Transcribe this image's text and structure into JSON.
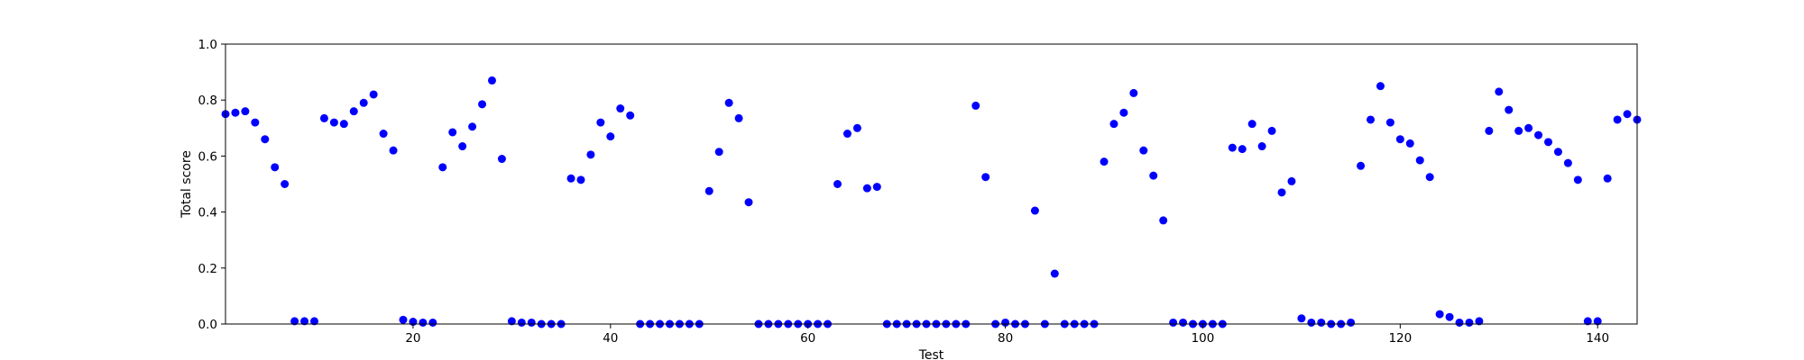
{
  "chart_data": {
    "type": "scatter",
    "xlabel": "Test",
    "ylabel": "Total score",
    "xlim": [
      1,
      144
    ],
    "ylim": [
      0,
      1.0
    ],
    "x_ticks": [
      20,
      40,
      60,
      80,
      100,
      120,
      140
    ],
    "x_tick_labels": [
      "20",
      "40",
      "60",
      "80",
      "100",
      "120",
      "140"
    ],
    "y_ticks": [
      0,
      0.2,
      0.4,
      0.6,
      0.8,
      1.0
    ],
    "y_tick_labels": [
      "0.0",
      "0.2",
      "0.4",
      "0.6",
      "0.8",
      "1.0"
    ],
    "grid": false,
    "marker_color": "#0000ff",
    "series": [
      {
        "x": [
          1,
          2,
          3,
          4,
          5,
          6,
          7,
          8,
          9,
          10,
          11,
          12,
          13,
          14,
          15,
          16,
          17,
          18,
          19,
          20,
          21,
          22,
          23,
          24,
          25,
          26,
          27,
          28,
          29,
          30,
          31,
          32,
          33,
          34,
          35,
          36,
          37,
          38,
          39,
          40,
          41,
          42,
          43,
          44,
          45,
          46,
          47,
          48,
          49,
          50,
          51,
          52,
          53,
          54,
          55,
          56,
          57,
          58,
          59,
          60,
          61,
          62,
          63,
          64,
          65,
          66,
          67,
          68,
          69,
          70,
          71,
          72,
          73,
          74,
          75,
          76,
          77,
          78,
          79,
          80,
          81,
          82,
          83,
          84,
          85,
          86,
          87,
          88,
          89,
          90,
          91,
          92,
          93,
          94,
          95,
          96,
          97,
          98,
          99,
          100,
          101,
          102,
          103,
          104,
          105,
          106,
          107,
          108,
          109,
          110,
          111,
          112,
          113,
          114,
          115,
          116,
          117,
          118,
          119,
          120,
          121,
          122,
          123,
          124,
          125,
          126,
          127,
          128,
          129,
          130,
          131,
          132,
          133,
          134,
          135,
          136,
          137,
          138,
          139,
          140,
          141,
          142,
          143,
          144
        ],
        "y": [
          0.75,
          0.755,
          0.76,
          0.72,
          0.66,
          0.56,
          0.5,
          0.01,
          0.01,
          0.01,
          0.735,
          0.72,
          0.715,
          0.76,
          0.79,
          0.82,
          0.68,
          0.62,
          0.015,
          0.008,
          0.005,
          0.005,
          0.56,
          0.685,
          0.635,
          0.705,
          0.785,
          0.87,
          0.59,
          0.01,
          0.005,
          0.005,
          0.0,
          0.0,
          0.0,
          0.52,
          0.515,
          0.605,
          0.72,
          0.67,
          0.77,
          0.745,
          0.0,
          0.0,
          0.0,
          0.0,
          0.0,
          0.0,
          0.0,
          0.475,
          0.615,
          0.79,
          0.735,
          0.435,
          0.0,
          0.0,
          0.0,
          0.0,
          0.0,
          0.0,
          0.0,
          0.0,
          0.5,
          0.68,
          0.7,
          0.485,
          0.49,
          0.0,
          0.0,
          0.0,
          0.0,
          0.0,
          0.0,
          0.0,
          0.0,
          0.0,
          0.78,
          0.525,
          0.0,
          0.005,
          0.0,
          0.0,
          0.405,
          0.0,
          0.18,
          0.0,
          0.0,
          0.0,
          0.0,
          0.58,
          0.715,
          0.755,
          0.825,
          0.62,
          0.53,
          0.37,
          0.005,
          0.005,
          0.0,
          0.0,
          0.0,
          0.0,
          0.63,
          0.625,
          0.715,
          0.635,
          0.69,
          0.47,
          0.51,
          0.02,
          0.005,
          0.005,
          0.0,
          0.0,
          0.005,
          0.565,
          0.73,
          0.85,
          0.72,
          0.66,
          0.645,
          0.585,
          0.525,
          0.035,
          0.025,
          0.005,
          0.005,
          0.01,
          0.69,
          0.83,
          0.765,
          0.69,
          0.7,
          0.675,
          0.65,
          0.615,
          0.575,
          0.515,
          0.01,
          0.01,
          0.52,
          0.73,
          0.75,
          0.73
        ]
      }
    ]
  }
}
